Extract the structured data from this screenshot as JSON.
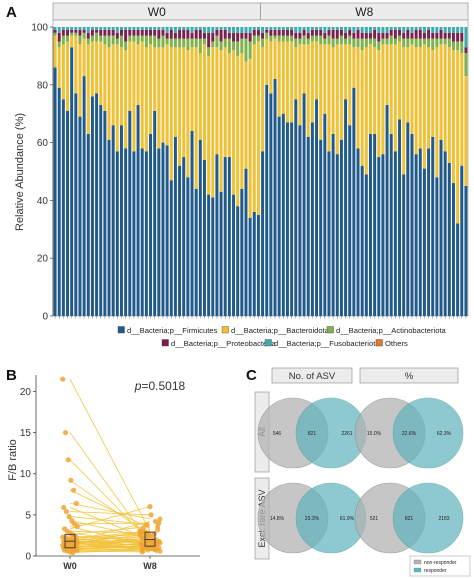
{
  "panels": {
    "a": "A",
    "b": "B",
    "c": "C"
  },
  "colors": {
    "firmicutes": "#1f5a8a",
    "bacteroidota": "#f0c232",
    "actinobacteriota": "#7fb24a",
    "proteobacteria": "#7a1f4e",
    "fusobacteriota": "#3fa9b0",
    "others": "#e07a2b",
    "nonresponder": "#b3b3b3",
    "responder": "#5fb3bb",
    "bline": "#f2c33a",
    "bpoint": "#f0a535"
  },
  "chart_data": [
    {
      "type": "bar",
      "stacked": true,
      "ylabel": "Relative Abundance (%)",
      "ylim": [
        0,
        100
      ],
      "yticks": [
        "0",
        "20",
        "40",
        "60",
        "80",
        "100"
      ],
      "facets": [
        "W0",
        "W8"
      ],
      "n_per_facet": 50,
      "series": [
        {
          "name": "d__Bacteria;p__Firmicutes",
          "key": "firmicutes",
          "values": [
            86,
            79,
            75,
            71,
            93,
            77,
            69,
            83,
            63,
            76,
            77,
            73,
            71,
            61,
            66,
            57,
            66,
            58,
            71,
            57,
            73,
            58,
            57,
            63,
            71,
            58,
            60,
            59,
            47,
            62,
            52,
            55,
            48,
            64,
            44,
            61,
            54,
            42,
            41,
            56,
            43,
            55,
            55,
            42,
            38,
            44,
            51,
            34,
            36,
            35,
            57,
            80,
            77,
            82,
            69,
            70,
            67,
            67,
            75,
            66,
            77,
            62,
            67,
            75,
            61,
            70,
            57,
            63,
            56,
            61,
            75,
            66,
            79,
            58,
            52,
            49,
            63,
            63,
            55,
            56,
            73,
            63,
            57,
            68,
            49,
            67,
            63,
            56,
            58,
            51,
            58,
            62,
            48,
            61,
            57,
            53,
            46,
            32,
            52,
            45
          ]
        },
        {
          "name": "d__Bacteria;p__Bacteroidota",
          "key": "bacteroidota",
          "values": [
            11,
            14,
            19,
            24,
            4,
            20,
            25,
            13,
            31,
            19,
            18,
            22,
            23,
            32,
            28,
            37,
            27,
            34,
            24,
            38,
            21,
            37,
            36,
            31,
            22,
            35,
            33,
            35,
            46,
            31,
            41,
            38,
            44,
            29,
            49,
            30,
            40,
            48,
            52,
            37,
            49,
            38,
            36,
            50,
            52,
            47,
            37,
            55,
            58,
            60,
            36,
            16,
            18,
            14,
            26,
            25,
            28,
            28,
            18,
            28,
            17,
            32,
            28,
            20,
            33,
            24,
            37,
            30,
            38,
            33,
            19,
            28,
            14,
            35,
            40,
            44,
            31,
            30,
            37,
            38,
            21,
            31,
            37,
            27,
            44,
            26,
            31,
            37,
            35,
            43,
            35,
            30,
            45,
            33,
            37,
            40,
            46,
            60,
            39,
            38
          ]
        },
        {
          "name": "d__Bacteria;p__Actinobacteriota",
          "key": "actinobacteriota",
          "values": [
            1,
            2,
            3,
            2,
            1,
            1,
            3,
            2,
            2,
            2,
            3,
            2,
            3,
            4,
            3,
            2,
            4,
            3,
            2,
            2,
            3,
            2,
            4,
            3,
            4,
            3,
            4,
            2,
            3,
            3,
            3,
            3,
            4,
            3,
            3,
            5,
            2,
            3,
            2,
            4,
            3,
            3,
            5,
            3,
            5,
            5,
            8,
            6,
            3,
            2,
            3,
            2,
            2,
            1,
            2,
            2,
            2,
            2,
            3,
            2,
            3,
            2,
            2,
            2,
            3,
            2,
            3,
            3,
            2,
            3,
            2,
            3,
            3,
            3,
            4,
            3,
            2,
            3,
            3,
            2,
            2,
            3,
            2,
            2,
            3,
            3,
            2,
            3,
            3,
            2,
            3,
            4,
            3,
            2,
            2,
            3,
            3,
            3,
            4,
            8
          ]
        },
        {
          "name": "d__Bacteria;p__Proteobacteria",
          "key": "proteobacteria",
          "values": [
            1,
            3,
            2,
            2,
            1,
            1,
            2,
            1,
            2,
            2,
            1,
            2,
            2,
            2,
            2,
            2,
            2,
            4,
            2,
            2,
            2,
            2,
            2,
            2,
            2,
            3,
            2,
            2,
            3,
            2,
            3,
            3,
            3,
            2,
            3,
            3,
            2,
            5,
            3,
            2,
            4,
            3,
            2,
            3,
            3,
            2,
            2,
            3,
            2,
            2,
            2,
            1,
            2,
            2,
            2,
            2,
            2,
            2,
            2,
            2,
            2,
            2,
            2,
            2,
            2,
            2,
            2,
            3,
            3,
            2,
            2,
            2,
            2,
            3,
            2,
            2,
            2,
            3,
            3,
            2,
            2,
            2,
            3,
            2,
            2,
            3,
            2,
            3,
            3,
            2,
            3,
            2,
            2,
            3,
            2,
            2,
            3,
            3,
            3,
            2
          ]
        },
        {
          "name": "d__Bacteria;p__Fusobacteriota",
          "key": "fusobacteriota",
          "values": [
            1,
            2,
            1,
            1,
            1,
            1,
            1,
            1,
            2,
            1,
            1,
            1,
            1,
            1,
            1,
            2,
            1,
            1,
            1,
            1,
            1,
            1,
            1,
            1,
            1,
            1,
            1,
            2,
            1,
            2,
            1,
            1,
            1,
            2,
            1,
            1,
            2,
            2,
            2,
            1,
            1,
            1,
            2,
            2,
            2,
            2,
            2,
            2,
            1,
            1,
            2,
            1,
            1,
            1,
            1,
            1,
            1,
            1,
            2,
            2,
            1,
            2,
            1,
            1,
            1,
            2,
            1,
            1,
            1,
            1,
            2,
            1,
            2,
            1,
            2,
            2,
            2,
            1,
            2,
            2,
            2,
            1,
            1,
            1,
            2,
            1,
            2,
            1,
            1,
            2,
            1,
            2,
            2,
            1,
            2,
            2,
            2,
            2,
            2,
            7
          ]
        },
        {
          "name": "Others",
          "key": "others",
          "values": [
            0,
            0,
            0,
            0,
            0,
            0,
            0,
            0,
            0,
            0,
            0,
            0,
            0,
            0,
            0,
            0,
            0,
            0,
            0,
            0,
            0,
            0,
            0,
            0,
            0,
            0,
            0,
            0,
            0,
            0,
            0,
            0,
            0,
            0,
            0,
            0,
            0,
            0,
            0,
            0,
            0,
            0,
            0,
            0,
            0,
            0,
            0,
            0,
            0,
            0,
            0,
            0,
            0,
            0,
            0,
            0,
            0,
            0,
            0,
            0,
            0,
            0,
            0,
            0,
            0,
            0,
            0,
            0,
            0,
            0,
            0,
            0,
            0,
            0,
            0,
            0,
            0,
            0,
            0,
            0,
            0,
            0,
            0,
            0,
            0,
            0,
            0,
            0,
            0,
            0,
            0,
            0,
            0,
            0,
            0,
            0,
            0,
            0,
            0,
            0
          ]
        }
      ]
    },
    {
      "type": "scatter",
      "ylabel": "F/B ratio",
      "ylim": [
        0,
        22
      ],
      "yticks": [
        "0",
        "5",
        "10",
        "15",
        "20"
      ],
      "categories": [
        "W0",
        "W8"
      ],
      "annotation_italic": "p",
      "annotation_rest": "=0.5018",
      "pairs": [
        [
          21.5,
          3.0
        ],
        [
          15.0,
          1.5
        ],
        [
          11.7,
          1.8
        ],
        [
          9.2,
          2.5
        ],
        [
          8.0,
          3.4
        ],
        [
          6.4,
          4.5
        ],
        [
          5.9,
          2.0
        ],
        [
          5.4,
          5.0
        ],
        [
          4.8,
          3.8
        ],
        [
          4.3,
          2.2
        ],
        [
          3.9,
          4.0
        ],
        [
          3.6,
          1.2
        ],
        [
          3.3,
          6.0
        ],
        [
          3.0,
          2.8
        ],
        [
          2.8,
          1.5
        ],
        [
          2.6,
          3.6
        ],
        [
          2.4,
          1.9
        ],
        [
          2.3,
          2.6
        ],
        [
          2.2,
          1.1
        ],
        [
          2.1,
          3.0
        ],
        [
          2.0,
          1.7
        ],
        [
          1.9,
          2.4
        ],
        [
          1.9,
          0.9
        ],
        [
          1.8,
          2.9
        ],
        [
          1.8,
          1.6
        ],
        [
          1.7,
          4.2
        ],
        [
          1.7,
          1.3
        ],
        [
          1.6,
          2.0
        ],
        [
          1.6,
          0.8
        ],
        [
          1.5,
          1.8
        ],
        [
          1.5,
          2.7
        ],
        [
          1.4,
          1.0
        ],
        [
          1.4,
          2.2
        ],
        [
          1.3,
          1.4
        ],
        [
          1.3,
          3.2
        ],
        [
          1.2,
          0.9
        ],
        [
          1.2,
          1.9
        ],
        [
          1.1,
          1.2
        ],
        [
          1.1,
          2.5
        ],
        [
          1.0,
          0.7
        ],
        [
          1.0,
          1.6
        ],
        [
          0.9,
          1.1
        ],
        [
          0.9,
          2.1
        ],
        [
          0.8,
          0.6
        ],
        [
          0.8,
          1.3
        ],
        [
          0.7,
          0.9
        ],
        [
          0.7,
          1.7
        ],
        [
          0.6,
          0.5
        ],
        [
          0.5,
          1.0
        ],
        [
          0.4,
          0.8
        ]
      ],
      "box": {
        "W0": {
          "q1": 1.0,
          "median": 1.8,
          "q3": 2.6
        },
        "W8": {
          "q1": 1.2,
          "median": 2.0,
          "q3": 2.9
        }
      }
    }
  ],
  "legend": {
    "items": [
      {
        "key": "firmicutes",
        "label": "d__Bacteria;p__Firmicutes"
      },
      {
        "key": "bacteroidota",
        "label": "d__Bacteria;p__Bacteroidota"
      },
      {
        "key": "actinobacteriota",
        "label": "d__Bacteria;p__Actinobacteriota"
      },
      {
        "key": "proteobacteria",
        "label": "d__Bacteria;p__Proteobacteria"
      },
      {
        "key": "fusobacteriota",
        "label": "d__Bacteria;p__Fusobacteriota"
      },
      {
        "key": "others",
        "label": "Others"
      }
    ]
  },
  "venn": {
    "col_headers": [
      "No. of ASV",
      "%"
    ],
    "row_headers": [
      "All",
      "Excl. rare ASV"
    ],
    "cells": [
      {
        "left": "546",
        "mid": "821",
        "right": "2261"
      },
      {
        "left": "15.0%",
        "mid": "22.6%",
        "right": "62.3%"
      },
      {
        "left": "14.8%",
        "mid": "23.3%",
        "right": "61.9%"
      },
      {
        "left": "521",
        "mid": "821",
        "right": "2183"
      }
    ],
    "legend": [
      "non-responder",
      "responder"
    ]
  }
}
